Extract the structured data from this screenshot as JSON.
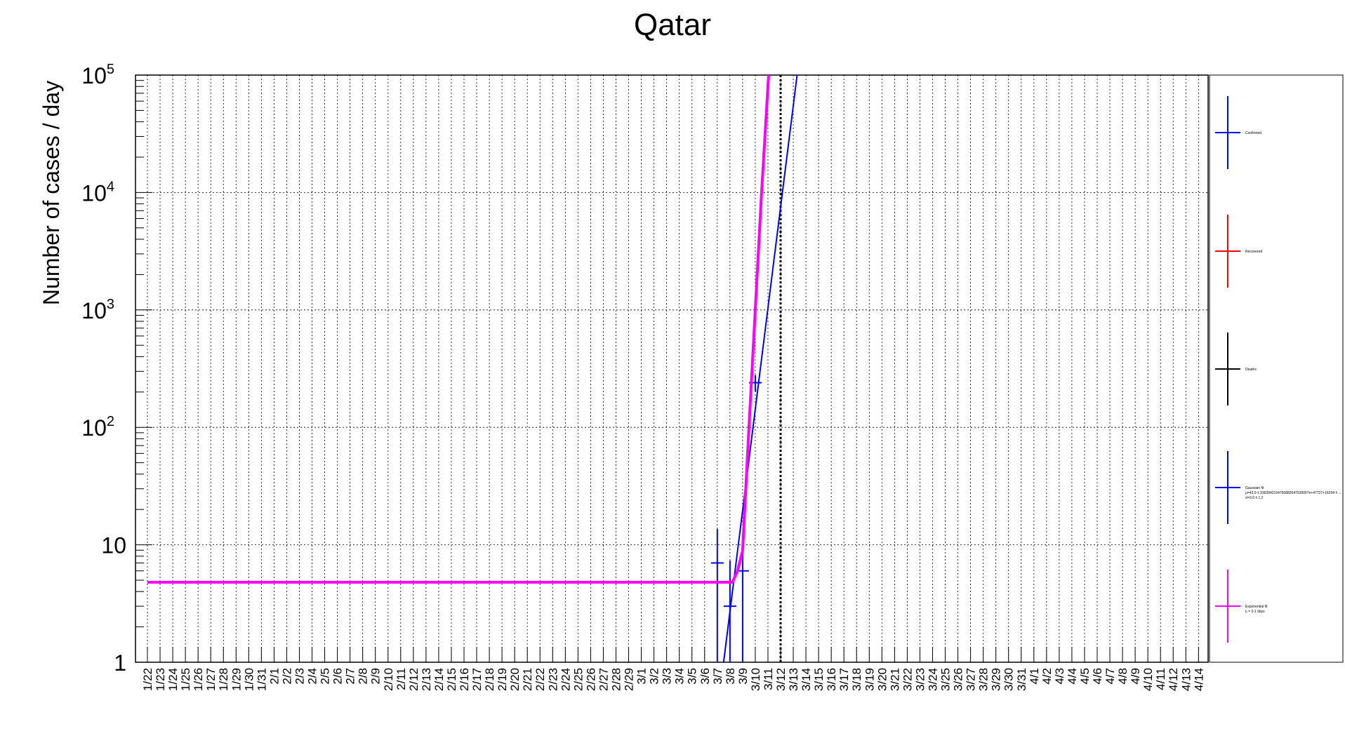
{
  "chart_data": {
    "type": "line",
    "title": "Qatar",
    "ylabel": "Number of cases / day",
    "xlabel": "",
    "yscale": "log",
    "ylim": [
      1,
      100000
    ],
    "y_ticks": [
      {
        "base": "1",
        "exp": ""
      },
      {
        "base": "10",
        "exp": ""
      },
      {
        "base": "10",
        "exp": "2"
      },
      {
        "base": "10",
        "exp": "3"
      },
      {
        "base": "10",
        "exp": "4"
      },
      {
        "base": "10",
        "exp": "5"
      }
    ],
    "grid": true,
    "legend_position": "right",
    "x_labels": [
      "1/22",
      "1/23",
      "1/24",
      "1/25",
      "1/26",
      "1/27",
      "1/28",
      "1/29",
      "1/30",
      "1/31",
      "2/1",
      "2/2",
      "2/3",
      "2/4",
      "2/5",
      "2/6",
      "2/7",
      "2/8",
      "2/9",
      "2/10",
      "2/11",
      "2/12",
      "2/13",
      "2/14",
      "2/15",
      "2/16",
      "2/17",
      "2/18",
      "2/19",
      "2/20",
      "2/21",
      "2/22",
      "2/23",
      "2/24",
      "2/25",
      "2/26",
      "2/27",
      "2/28",
      "2/29",
      "3/1",
      "3/2",
      "3/3",
      "3/4",
      "3/5",
      "3/6",
      "3/7",
      "3/8",
      "3/9",
      "3/10",
      "3/11",
      "3/12",
      "3/13",
      "3/14",
      "3/15",
      "3/16",
      "3/17",
      "3/18",
      "3/19",
      "3/20",
      "3/21",
      "3/22",
      "3/23",
      "3/24",
      "3/25",
      "3/26",
      "3/27",
      "3/28",
      "3/29",
      "3/30",
      "3/31",
      "4/1",
      "4/2",
      "4/3",
      "4/4",
      "4/5",
      "4/6",
      "4/7",
      "4/8",
      "4/9",
      "4/10",
      "4/11",
      "4/12",
      "4/13",
      "4/14"
    ],
    "vertical_marker": {
      "x": "3/12",
      "style": "dotted"
    },
    "series": [
      {
        "name": "Confirmed",
        "kind": "points",
        "color": "#0000ff",
        "points": [
          {
            "x": "3/7",
            "y": 7
          },
          {
            "x": "3/8",
            "y": 3
          },
          {
            "x": "3/9",
            "y": 6
          },
          {
            "x": "3/10",
            "y": 240
          }
        ]
      },
      {
        "name": "Recovered",
        "kind": "points",
        "color": "#ff0000",
        "points": []
      },
      {
        "name": "Deaths",
        "kind": "points",
        "color": "#000000",
        "points": []
      },
      {
        "name": "Gaussian fit",
        "kind": "line",
        "color": "#0000ff",
        "points": [
          {
            "x": "3/7.5",
            "y": 1
          },
          {
            "x": "3/13.3",
            "y": 100000
          }
        ]
      },
      {
        "name": "Exponential fit",
        "kind": "line",
        "color": "#ff00ff",
        "points": [
          {
            "x": "1/22",
            "y": 4.8
          },
          {
            "x": "3/8.2",
            "y": 4.8
          },
          {
            "x": "3/8.6",
            "y": 6
          },
          {
            "x": "3/9",
            "y": 9
          },
          {
            "x": "3/9.5",
            "y": 100
          },
          {
            "x": "3/10.5",
            "y": 10000
          },
          {
            "x": "3/11.05",
            "y": 100000
          }
        ]
      }
    ],
    "legend": [
      {
        "label": "Confirmed",
        "sub": "",
        "color": "#0000ff"
      },
      {
        "label": "Recovered",
        "sub": "",
        "color": "#ff0000"
      },
      {
        "label": "Deaths",
        "sub": "",
        "color": "#000000"
      },
      {
        "label": "Gaussian fit",
        "sub": "μ=43.0 ± 336394219475688264753906?e+47727+16294 ± ...",
        "sub2": "σ=3.0 ± 1.2",
        "color": "#0000ff"
      },
      {
        "label": "Exponential fit",
        "sub": "tₓ = 0.1 days",
        "sub2": "",
        "color": "#ff00ff"
      }
    ]
  }
}
